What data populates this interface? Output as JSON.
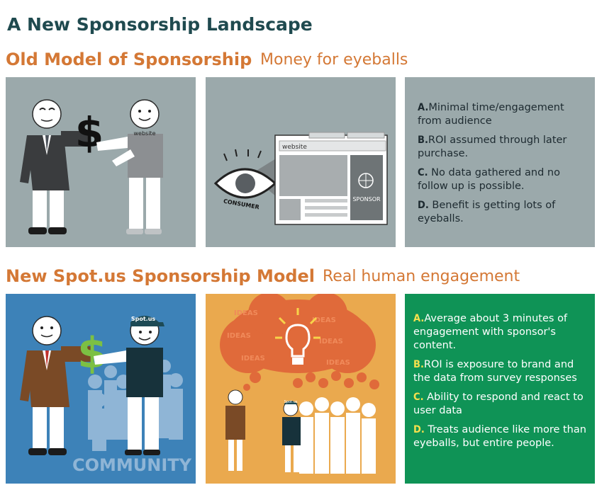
{
  "header": {
    "title": "A New Sponsorship Landscape"
  },
  "old_model": {
    "heading": "Old Model of Sponsorship",
    "subheading": "Money for eyeballs",
    "panel1": {
      "website_tag": "website",
      "money_symbol": "$"
    },
    "panel2": {
      "browser_url": "website",
      "sponsor_label": "SPONSOR",
      "consumer_label": "CONSUMER"
    },
    "points": [
      {
        "letter": "A.",
        "text": "Minimal time/engagement from audience"
      },
      {
        "letter": "B.",
        "text": "ROI assumed through later purchase."
      },
      {
        "letter": "C.",
        "text": "No data gathered and no follow up is possible."
      },
      {
        "letter": "D.",
        "text": "Benefit is getting lots of eyeballs."
      }
    ]
  },
  "new_model": {
    "heading": "New Spot.us Sponsorship Model",
    "subheading": "Real human engagement",
    "panel1": {
      "cap_label": "Spot.us",
      "money_symbol": "$",
      "community_label": "COMMUNITY"
    },
    "panel2": {
      "cloud_word": "IDEAS",
      "cap_label": "Spot.us"
    },
    "points": [
      {
        "letter": "A.",
        "text": "Average about 3 minutes of engagement with sponsor's content."
      },
      {
        "letter": "B.",
        "text": "ROI is exposure to brand and the data from survey responses"
      },
      {
        "letter": "C.",
        "text": "Ability to respond and react to user data"
      },
      {
        "letter": "D.",
        "text": "Treats audience like more than eyeballs, but entire people."
      }
    ]
  },
  "colors": {
    "title": "#1f4a4f",
    "section": "#d47835",
    "grey_panel": "#9ba9ab",
    "blue_panel": "#3d82b8",
    "orange_panel": "#eaa94e",
    "green_panel": "#0f9356"
  }
}
